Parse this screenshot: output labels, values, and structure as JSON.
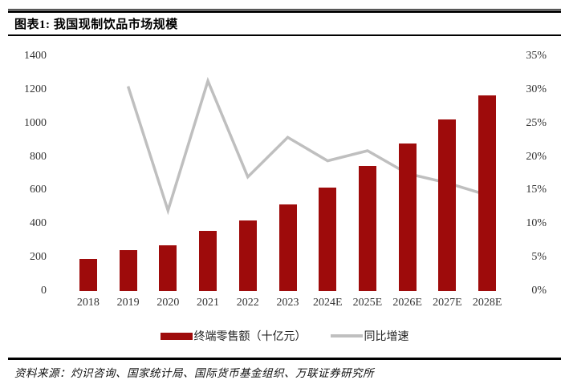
{
  "header": {
    "title": "图表1: 我国现制饮品市场规模"
  },
  "footer": {
    "source": "资料来源：灼识咨询、国家统计局、国际货币基金组织、万联证券研究所"
  },
  "colors": {
    "bar": "#9E0B0B",
    "line": "#BFBFBF",
    "axis_text": "#333333",
    "rule": "#000000",
    "background": "#FFFFFF"
  },
  "chart_data": {
    "type": "bar",
    "subtype": "combo-bar-line",
    "title": "图表1: 我国现制饮品市场规模",
    "categories": [
      "2018",
      "2019",
      "2020",
      "2021",
      "2022",
      "2023",
      "2024E",
      "2025E",
      "2026E",
      "2027E",
      "2028E"
    ],
    "series": [
      {
        "name": "终端零售额（十亿元）",
        "type": "bar",
        "axis": "left",
        "color": "#9E0B0B",
        "values": [
          190,
          245,
          272,
          358,
          420,
          515,
          618,
          745,
          880,
          1022,
          1165
        ]
      },
      {
        "name": "同比增速",
        "type": "line",
        "axis": "right",
        "color": "#BFBFBF",
        "values": [
          null,
          30.5,
          12.0,
          31.3,
          17.0,
          22.9,
          19.4,
          20.9,
          17.5,
          16.1,
          14.3
        ]
      }
    ],
    "left_axis": {
      "min": 0,
      "max": 1400,
      "step": 200,
      "ticks": [
        "0",
        "200",
        "400",
        "600",
        "800",
        "1000",
        "1200",
        "1400"
      ]
    },
    "right_axis": {
      "min": 0,
      "max": 35,
      "step": 5,
      "ticks": [
        "0%",
        "5%",
        "10%",
        "15%",
        "20%",
        "25%",
        "30%",
        "35%"
      ]
    },
    "grid": false,
    "axis_lines": false,
    "legend_position": "bottom"
  }
}
